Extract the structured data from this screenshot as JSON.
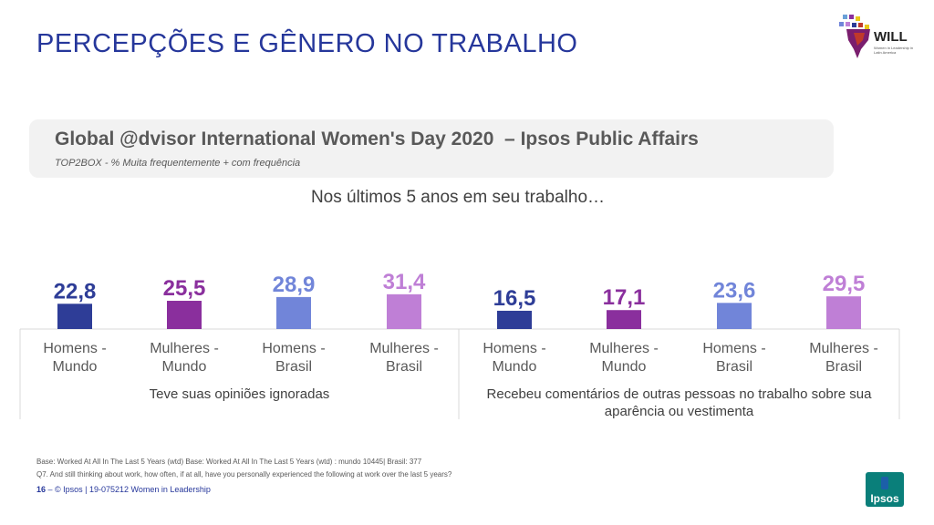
{
  "header": {
    "title": "PERCEPÇÕES E GÊNERO NO TRABALHO",
    "logo_name": "WILL",
    "logo_tagline": "Women in Leadership in Latin America"
  },
  "panel": {
    "title": "Global @dvisor International Women's Day 2020  – Ipsos Public Affairs",
    "subtitle": "TOP2BOX - % Muita frequentemente + com frequência"
  },
  "chart_subtitle": "Nos últimos 5 anos em seu trabalho…",
  "chart_data": {
    "type": "bar",
    "title": "Nos últimos 5 anos em seu trabalho…",
    "groups": [
      {
        "label": "Teve suas opiniões ignoradas",
        "label_lines": [
          "Teve suas opiniões ignoradas"
        ],
        "categories": [
          [
            "Homens -",
            "Mundo"
          ],
          [
            "Mulheres -",
            "Mundo"
          ],
          [
            "Homens -",
            "Brasil"
          ],
          [
            "Mulheres -",
            "Brasil"
          ]
        ],
        "values": [
          22.8,
          25.5,
          28.9,
          31.4
        ],
        "value_labels": [
          "22,8",
          "25,5",
          "28,9",
          "31,4"
        ]
      },
      {
        "label": "Recebeu comentários de outras pessoas no trabalho sobre sua aparência ou vestimenta",
        "label_lines": [
          "Recebeu comentários de outras pessoas no trabalho sobre sua",
          "aparência ou vestimenta"
        ],
        "categories": [
          [
            "Homens -",
            "Mundo"
          ],
          [
            "Mulheres -",
            "Mundo"
          ],
          [
            "Homens -",
            "Brasil"
          ],
          [
            "Mulheres -",
            "Brasil"
          ]
        ],
        "values": [
          16.5,
          17.1,
          23.6,
          29.5
        ],
        "value_labels": [
          "16,5",
          "17,1",
          "23,6",
          "29,5"
        ]
      }
    ],
    "colors": [
      "#2e3d97",
      "#8a2f9d",
      "#7185d9",
      "#bf7fd6"
    ],
    "ylim": [
      0,
      100
    ],
    "xlabel": "",
    "ylabel": ""
  },
  "footer": {
    "base_note": "Base: Worked At All In The Last 5 Years (wtd) Base: Worked At All In The Last 5 Years (wtd) : mundo 10445| Brasil: 377",
    "question_note": "Q7. And still thinking about work, how often, if at all, have you personally experienced the following at work over the last 5 years?",
    "page_number": "16",
    "credit": " –  © Ipsos | 19-075212 Women in Leadership",
    "brand": "Ipsos"
  }
}
